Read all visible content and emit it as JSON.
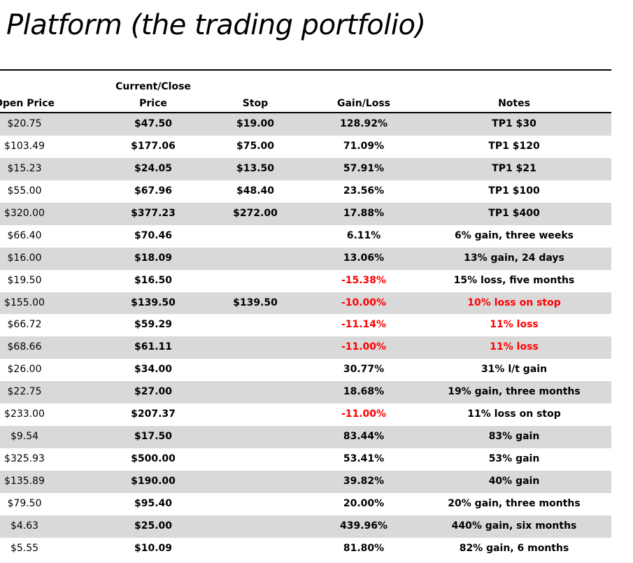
{
  "title": "Platform (the trading portfolio)",
  "colors": {
    "row_shade": "#d9d9d9",
    "negative": "#ff0000"
  },
  "columns": {
    "open": "Open Price",
    "close_line1": "Current/Close",
    "close_line2": "Price",
    "stop": "Stop",
    "gain": "Gain/Loss",
    "notes": "Notes"
  },
  "rows": [
    {
      "open": "$20.75",
      "close": "$47.50",
      "stop": "$19.00",
      "gain": "128.92%",
      "notes": "TP1 $30",
      "gain_negative": false,
      "notes_negative": false
    },
    {
      "open": "$103.49",
      "close": "$177.06",
      "stop": "$75.00",
      "gain": "71.09%",
      "notes": "TP1 $120",
      "gain_negative": false,
      "notes_negative": false
    },
    {
      "open": "$15.23",
      "close": "$24.05",
      "stop": "$13.50",
      "gain": "57.91%",
      "notes": "TP1 $21",
      "gain_negative": false,
      "notes_negative": false
    },
    {
      "open": "$55.00",
      "close": "$67.96",
      "stop": "$48.40",
      "gain": "23.56%",
      "notes": "TP1 $100",
      "gain_negative": false,
      "notes_negative": false
    },
    {
      "open": "$320.00",
      "close": "$377.23",
      "stop": "$272.00",
      "gain": "17.88%",
      "notes": "TP1 $400",
      "gain_negative": false,
      "notes_negative": false
    },
    {
      "open": "$66.40",
      "close": "$70.46",
      "stop": "",
      "gain": "6.11%",
      "notes": "6% gain, three weeks",
      "gain_negative": false,
      "notes_negative": false
    },
    {
      "open": "$16.00",
      "close": "$18.09",
      "stop": "",
      "gain": "13.06%",
      "notes": "13% gain, 24 days",
      "gain_negative": false,
      "notes_negative": false
    },
    {
      "open": "$19.50",
      "close": "$16.50",
      "stop": "",
      "gain": "-15.38%",
      "notes": "15% loss, five months",
      "gain_negative": true,
      "notes_negative": false
    },
    {
      "open": "$155.00",
      "close": "$139.50",
      "stop": "$139.50",
      "gain": "-10.00%",
      "notes": "10% loss on stop",
      "gain_negative": true,
      "notes_negative": true
    },
    {
      "open": "$66.72",
      "close": "$59.29",
      "stop": "",
      "gain": "-11.14%",
      "notes": "11% loss",
      "gain_negative": true,
      "notes_negative": true
    },
    {
      "open": "$68.66",
      "close": "$61.11",
      "stop": "",
      "gain": "-11.00%",
      "notes": "11% loss",
      "gain_negative": true,
      "notes_negative": true
    },
    {
      "open": "$26.00",
      "close": "$34.00",
      "stop": "",
      "gain": "30.77%",
      "notes": "31% l/t gain",
      "gain_negative": false,
      "notes_negative": false
    },
    {
      "open": "$22.75",
      "close": "$27.00",
      "stop": "",
      "gain": "18.68%",
      "notes": "19% gain, three months",
      "gain_negative": false,
      "notes_negative": false
    },
    {
      "open": "$233.00",
      "close": "$207.37",
      "stop": "",
      "gain": "-11.00%",
      "notes": "11% loss on stop",
      "gain_negative": true,
      "notes_negative": false
    },
    {
      "open": "$9.54",
      "close": "$17.50",
      "stop": "",
      "gain": "83.44%",
      "notes": "83% gain",
      "gain_negative": false,
      "notes_negative": false
    },
    {
      "open": "$325.93",
      "close": "$500.00",
      "stop": "",
      "gain": "53.41%",
      "notes": "53% gain",
      "gain_negative": false,
      "notes_negative": false
    },
    {
      "open": "$135.89",
      "close": "$190.00",
      "stop": "",
      "gain": "39.82%",
      "notes": "40% gain",
      "gain_negative": false,
      "notes_negative": false
    },
    {
      "open": "$79.50",
      "close": "$95.40",
      "stop": "",
      "gain": "20.00%",
      "notes": "20% gain, three months",
      "gain_negative": false,
      "notes_negative": false
    },
    {
      "open": "$4.63",
      "close": "$25.00",
      "stop": "",
      "gain": "439.96%",
      "notes": "440% gain, six months",
      "gain_negative": false,
      "notes_negative": false
    },
    {
      "open": "$5.55",
      "close": "$10.09",
      "stop": "",
      "gain": "81.80%",
      "notes": "82% gain, 6 months",
      "gain_negative": false,
      "notes_negative": false
    }
  ]
}
